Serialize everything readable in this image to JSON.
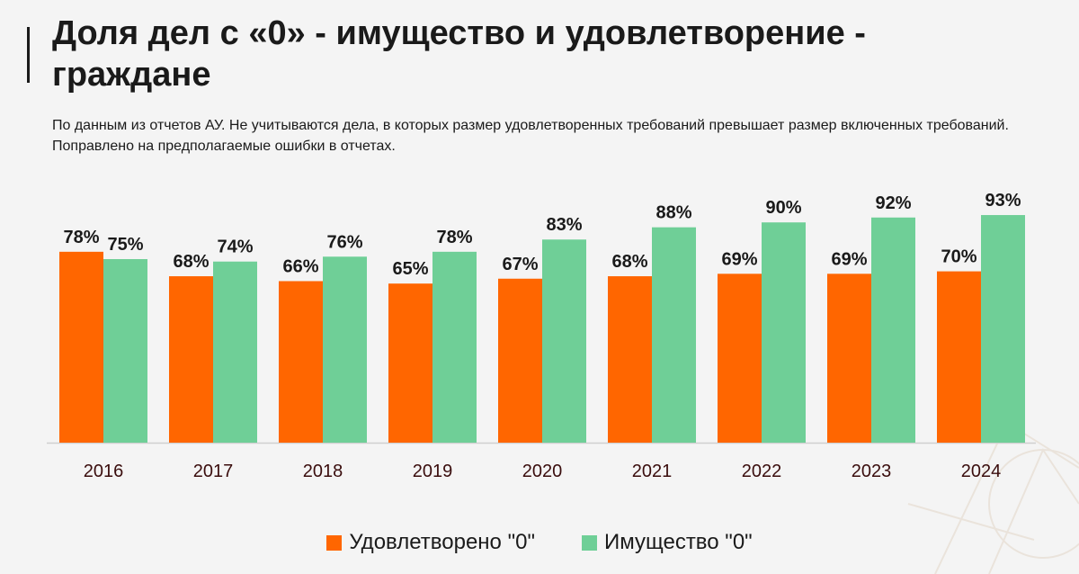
{
  "slide": {
    "title": "Доля дел с «0» - имущество и удовлетворение - граждане",
    "subtitle": "По данным из отчетов АУ. Не учитываются дела, в которых размер удовлетворенных требований превышает размер включенных требований. Поправлено на предполагаемые ошибки в отчетах."
  },
  "colors": {
    "satisfied": "#ff6600",
    "property": "#6fcf97",
    "axis": "#cfcfcf",
    "tick_text": "#3a0d0d"
  },
  "chart_data": {
    "type": "bar",
    "categories": [
      "2016",
      "2017",
      "2018",
      "2019",
      "2020",
      "2021",
      "2022",
      "2023",
      "2024"
    ],
    "series": [
      {
        "name": "Удовлетворено \"0\"",
        "color_key": "satisfied",
        "values": [
          78,
          68,
          66,
          65,
          67,
          68,
          69,
          69,
          70
        ],
        "labels": [
          "78%",
          "68%",
          "66%",
          "65%",
          "67%",
          "68%",
          "69%",
          "69%",
          "70%"
        ]
      },
      {
        "name": "Имущество \"0\"",
        "color_key": "property",
        "values": [
          75,
          74,
          76,
          78,
          83,
          88,
          90,
          92,
          93
        ],
        "labels": [
          "75%",
          "74%",
          "76%",
          "78%",
          "83%",
          "88%",
          "90%",
          "92%",
          "93%"
        ]
      }
    ],
    "title": "",
    "xlabel": "",
    "ylabel": "",
    "grid": false,
    "legend_position": "bottom"
  }
}
